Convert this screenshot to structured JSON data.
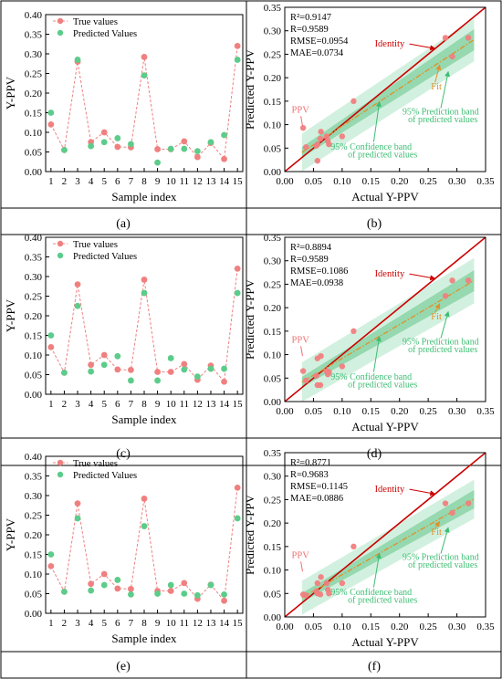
{
  "panel_labels": [
    "(a)",
    "(b)",
    "(c)",
    "(d)",
    "(e)",
    "(f)"
  ],
  "colors": {
    "true_values": "#f08080",
    "predicted_values": "#5ccc8a",
    "identity": "#cc0000",
    "fit": "#e0902a",
    "prediction_band": "#cdeedb",
    "confidence_band": "#8fd5aa",
    "band_label": "#3dbd72",
    "ppv_label": "#f07070"
  },
  "chart_data": [
    {
      "type": "line",
      "panel": "(a)",
      "xlabel": "Sample index",
      "ylabel": "Y-PPV",
      "xlim": [
        0.6,
        15.4
      ],
      "ylim": [
        0,
        0.4
      ],
      "x_ticks": [
        1,
        2,
        3,
        4,
        5,
        6,
        7,
        8,
        9,
        10,
        11,
        12,
        13,
        14,
        15
      ],
      "y_ticks": [
        0.0,
        0.05,
        0.1,
        0.15,
        0.2,
        0.25,
        0.3,
        0.35,
        0.4
      ],
      "y_tick_labels": [
        "0.00",
        "0.05",
        "0.10",
        "0.15",
        "0.20",
        "0.25",
        "0.30",
        "0.35",
        "0.40"
      ],
      "legend": "top-left",
      "series": [
        {
          "name": "True values",
          "values": [
            0.12,
            0.055,
            0.28,
            0.075,
            0.1,
            0.063,
            0.062,
            0.292,
            0.057,
            0.057,
            0.077,
            0.037,
            0.073,
            0.032,
            0.32
          ]
        },
        {
          "name": "Predicted Values",
          "values": [
            0.15,
            0.055,
            0.285,
            0.065,
            0.075,
            0.085,
            0.07,
            0.245,
            0.023,
            0.058,
            0.058,
            0.052,
            0.075,
            0.093,
            0.285
          ]
        }
      ]
    },
    {
      "type": "scatter",
      "panel": "(b)",
      "xlabel": "Actual Y-PPV",
      "ylabel": "Predicted Y-PPV",
      "xlim": [
        0,
        0.35
      ],
      "ylim": [
        0,
        0.35
      ],
      "x_ticks": [
        0.0,
        0.05,
        0.1,
        0.15,
        0.2,
        0.25,
        0.3,
        0.35
      ],
      "y_ticks": [
        0.0,
        0.05,
        0.1,
        0.15,
        0.2,
        0.25,
        0.3,
        0.35
      ],
      "tick_labels": [
        "0.00",
        "0.05",
        "0.10",
        "0.15",
        "0.20",
        "0.25",
        "0.30",
        "0.35"
      ],
      "stats": [
        "R²=0.9147",
        "R=0.9589",
        "RMSE=0.0954",
        "MAE=0.0734"
      ],
      "annotations": {
        "identity": "Identity",
        "fit": "Fit",
        "ppv": "PPV",
        "pred_band": [
          "95% Prediction band",
          "of predicted values"
        ],
        "conf_band": [
          "95% Confidence band",
          "of predicted values"
        ]
      },
      "fit_line": {
        "slope": 0.8,
        "intercept": 0.017
      },
      "confidence_halfwidth": 0.016,
      "prediction_halfwidth": 0.04,
      "x": [
        0.12,
        0.055,
        0.28,
        0.075,
        0.1,
        0.063,
        0.062,
        0.292,
        0.057,
        0.057,
        0.077,
        0.037,
        0.073,
        0.032,
        0.32
      ],
      "y": [
        0.15,
        0.055,
        0.285,
        0.065,
        0.075,
        0.085,
        0.07,
        0.245,
        0.023,
        0.058,
        0.058,
        0.052,
        0.075,
        0.093,
        0.285
      ]
    },
    {
      "type": "line",
      "panel": "(c)",
      "xlabel": "Sample index",
      "ylabel": "Y-PPV",
      "xlim": [
        0.6,
        15.4
      ],
      "ylim": [
        0,
        0.4
      ],
      "x_ticks": [
        1,
        2,
        3,
        4,
        5,
        6,
        7,
        8,
        9,
        10,
        11,
        12,
        13,
        14,
        15
      ],
      "y_ticks": [
        0.0,
        0.05,
        0.1,
        0.15,
        0.2,
        0.25,
        0.3,
        0.35,
        0.4
      ],
      "y_tick_labels": [
        "0.00",
        "0.05",
        "0.10",
        "0.15",
        "0.20",
        "0.25",
        "0.30",
        "0.35",
        "0.40"
      ],
      "legend": "top-left",
      "series": [
        {
          "name": "True values",
          "values": [
            0.12,
            0.055,
            0.28,
            0.075,
            0.1,
            0.063,
            0.062,
            0.292,
            0.057,
            0.057,
            0.077,
            0.037,
            0.073,
            0.032,
            0.32
          ]
        },
        {
          "name": "Predicted Values",
          "values": [
            0.15,
            0.055,
            0.225,
            0.058,
            0.075,
            0.097,
            0.035,
            0.258,
            0.035,
            0.092,
            0.063,
            0.045,
            0.065,
            0.065,
            0.258
          ]
        }
      ]
    },
    {
      "type": "scatter",
      "panel": "(d)",
      "xlabel": "Actual Y-PPV",
      "ylabel": "Predicted Y-PPV",
      "xlim": [
        0,
        0.35
      ],
      "ylim": [
        0,
        0.35
      ],
      "x_ticks": [
        0.0,
        0.05,
        0.1,
        0.15,
        0.2,
        0.25,
        0.3,
        0.35
      ],
      "y_ticks": [
        0.0,
        0.05,
        0.1,
        0.15,
        0.2,
        0.25,
        0.3,
        0.35
      ],
      "tick_labels": [
        "0.00",
        "0.05",
        "0.10",
        "0.15",
        "0.20",
        "0.25",
        "0.30",
        "0.35"
      ],
      "stats": [
        "R²=0.8894",
        "R=0.9589",
        "RMSE=0.1086",
        "MAE=0.0938"
      ],
      "annotations": {
        "identity": "Identity",
        "fit": "Fit",
        "ppv": "PPV",
        "pred_band": [
          "95% Prediction band",
          "of predicted values"
        ],
        "conf_band": [
          "95% Confidence band",
          "of predicted values"
        ]
      },
      "fit_line": {
        "slope": 0.72,
        "intercept": 0.02
      },
      "confidence_halfwidth": 0.016,
      "prediction_halfwidth": 0.042,
      "x": [
        0.12,
        0.055,
        0.28,
        0.075,
        0.1,
        0.063,
        0.062,
        0.292,
        0.057,
        0.057,
        0.077,
        0.037,
        0.073,
        0.032,
        0.32
      ],
      "y": [
        0.15,
        0.055,
        0.225,
        0.058,
        0.075,
        0.097,
        0.035,
        0.258,
        0.035,
        0.092,
        0.063,
        0.045,
        0.065,
        0.065,
        0.258
      ]
    },
    {
      "type": "line",
      "panel": "(e)",
      "xlabel": "Sample index",
      "ylabel": "Y-PPV",
      "xlim": [
        0.6,
        15.4
      ],
      "ylim": [
        0,
        0.4
      ],
      "x_ticks": [
        1,
        2,
        3,
        4,
        5,
        6,
        7,
        8,
        9,
        10,
        11,
        12,
        13,
        14,
        15
      ],
      "y_ticks": [
        0.0,
        0.05,
        0.1,
        0.15,
        0.2,
        0.25,
        0.3,
        0.35,
        0.4
      ],
      "y_tick_labels": [
        "0.00",
        "0.05",
        "0.10",
        "0.15",
        "0.20",
        "0.25",
        "0.30",
        "0.35",
        "0.40"
      ],
      "legend": "top-left",
      "series": [
        {
          "name": "True values",
          "values": [
            0.12,
            0.055,
            0.28,
            0.075,
            0.1,
            0.063,
            0.062,
            0.292,
            0.057,
            0.057,
            0.077,
            0.037,
            0.073,
            0.032,
            0.32
          ]
        },
        {
          "name": "Predicted Values",
          "values": [
            0.15,
            0.055,
            0.242,
            0.058,
            0.072,
            0.085,
            0.048,
            0.222,
            0.05,
            0.072,
            0.05,
            0.046,
            0.072,
            0.048,
            0.242
          ]
        }
      ]
    },
    {
      "type": "scatter",
      "panel": "(f)",
      "xlabel": "Actual Y-PPV",
      "ylabel": "Predicted Y-PPV",
      "xlim": [
        0,
        0.35
      ],
      "ylim": [
        0,
        0.35
      ],
      "x_ticks": [
        0.0,
        0.05,
        0.1,
        0.15,
        0.2,
        0.25,
        0.3,
        0.35
      ],
      "y_ticks": [
        0.0,
        0.05,
        0.1,
        0.15,
        0.2,
        0.25,
        0.3,
        0.35
      ],
      "tick_labels": [
        "0.00",
        "0.05",
        "0.10",
        "0.15",
        "0.20",
        "0.25",
        "0.30",
        "0.35"
      ],
      "stats": [
        "R²=0.8771",
        "R=0.9683",
        "RMSE=0.1145",
        "MAE=0.0886"
      ],
      "annotations": {
        "identity": "Identity",
        "fit": "Fit",
        "ppv": "PPV",
        "pred_band": [
          "95% Prediction band",
          "of predicted values"
        ],
        "conf_band": [
          "95% Confidence band",
          "of predicted values"
        ]
      },
      "fit_line": {
        "slope": 0.7,
        "intercept": 0.02
      },
      "confidence_halfwidth": 0.014,
      "prediction_halfwidth": 0.036,
      "x": [
        0.12,
        0.055,
        0.28,
        0.075,
        0.1,
        0.063,
        0.062,
        0.292,
        0.057,
        0.057,
        0.077,
        0.037,
        0.073,
        0.032,
        0.32
      ],
      "y": [
        0.15,
        0.055,
        0.242,
        0.058,
        0.072,
        0.085,
        0.048,
        0.222,
        0.05,
        0.072,
        0.05,
        0.046,
        0.072,
        0.048,
        0.242
      ]
    }
  ]
}
